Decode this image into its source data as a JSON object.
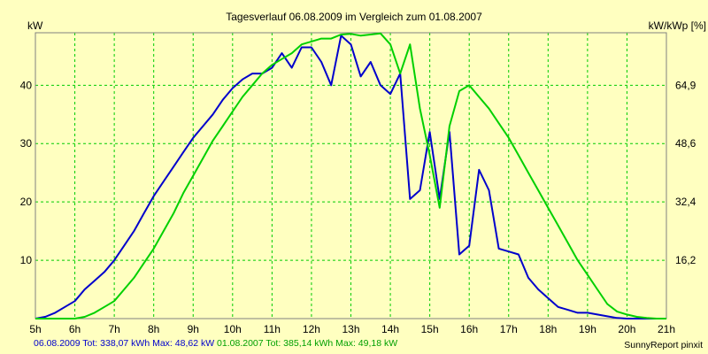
{
  "chart_data": {
    "type": "line",
    "title": "Tagesverlauf 06.08.2009 im Vergleich zum 01.08.2007",
    "ylabel": "kW",
    "y2label": "kW/kWp [%]",
    "xlim": [
      5,
      21
    ],
    "ylim": [
      0,
      49
    ],
    "x_ticks": [
      "5h",
      "6h",
      "7h",
      "8h",
      "9h",
      "10h",
      "11h",
      "12h",
      "13h",
      "14h",
      "15h",
      "16h",
      "17h",
      "18h",
      "19h",
      "20h",
      "21h"
    ],
    "y_ticks": [
      "10",
      "20",
      "30",
      "40"
    ],
    "y2_ticks": [
      "16,2",
      "32,4",
      "48,6",
      "64,9"
    ],
    "grid": true,
    "series": [
      {
        "name": "06.08.2009",
        "color": "#0000cc",
        "x": [
          5.0,
          5.25,
          5.5,
          5.75,
          6.0,
          6.25,
          6.5,
          6.75,
          7.0,
          7.25,
          7.5,
          7.75,
          8.0,
          8.25,
          8.5,
          8.75,
          9.0,
          9.25,
          9.5,
          9.75,
          10.0,
          10.25,
          10.5,
          10.75,
          11.0,
          11.25,
          11.5,
          11.75,
          12.0,
          12.25,
          12.5,
          12.75,
          13.0,
          13.25,
          13.5,
          13.75,
          14.0,
          14.25,
          14.5,
          14.75,
          15.0,
          15.25,
          15.5,
          15.75,
          16.0,
          16.25,
          16.5,
          16.75,
          17.0,
          17.25,
          17.5,
          17.75,
          18.0,
          18.25,
          18.5,
          18.75,
          19.0,
          19.25,
          19.5,
          19.75,
          20.0,
          20.25,
          20.5,
          21.0
        ],
        "y": [
          0,
          0.3,
          1,
          2,
          3,
          5,
          6.5,
          8,
          10,
          12.5,
          15,
          18,
          21,
          23.5,
          26,
          28.5,
          31,
          33,
          35,
          37.5,
          39.5,
          41,
          42,
          42,
          43,
          45.5,
          43,
          46.5,
          46.5,
          44,
          40,
          48.5,
          47,
          41.5,
          44,
          40,
          38.5,
          42,
          20.5,
          22,
          32,
          20.5,
          32,
          11,
          12.5,
          25.5,
          22,
          12,
          11.5,
          11,
          7,
          5,
          3.5,
          2,
          1.5,
          1,
          1,
          0.7,
          0.4,
          0.1,
          0,
          0,
          0,
          0
        ]
      },
      {
        "name": "01.08.2007",
        "color": "#00d000",
        "x": [
          5.0,
          5.5,
          6.0,
          6.25,
          6.5,
          6.75,
          7.0,
          7.25,
          7.5,
          7.75,
          8.0,
          8.25,
          8.5,
          8.75,
          9.0,
          9.25,
          9.5,
          9.75,
          10.0,
          10.25,
          10.5,
          10.75,
          11.0,
          11.25,
          11.5,
          11.75,
          12.0,
          12.25,
          12.5,
          12.75,
          13.0,
          13.25,
          13.5,
          13.75,
          14.0,
          14.25,
          14.5,
          14.75,
          15.0,
          15.25,
          15.5,
          15.75,
          16.0,
          16.25,
          16.5,
          16.75,
          17.0,
          17.25,
          17.5,
          17.75,
          18.0,
          18.25,
          18.5,
          18.75,
          19.0,
          19.25,
          19.5,
          19.75,
          20.0,
          20.25,
          20.5,
          20.75,
          21.0
        ],
        "y": [
          0,
          0,
          0,
          0.3,
          1,
          2,
          3,
          5,
          7,
          9.5,
          12,
          15,
          18,
          21.5,
          24.5,
          27.5,
          30.5,
          33,
          35.5,
          38,
          40,
          42,
          43.5,
          44.5,
          45.5,
          47,
          47.5,
          48,
          48,
          48.7,
          48.8,
          48.5,
          48.7,
          48.9,
          47,
          42,
          47,
          36,
          28,
          19,
          33,
          39,
          40,
          38,
          36,
          33.5,
          31,
          28,
          25,
          22,
          19,
          16,
          13,
          10,
          7.5,
          5,
          2.5,
          1.2,
          0.7,
          0.3,
          0.1,
          0,
          0
        ]
      }
    ]
  },
  "footer": {
    "series1_name": "06.08.2009",
    "series1_total": "Tot: 338,07 kWh",
    "series1_max": "Max: 48,62 kW",
    "series2_name": "01.08.2007",
    "series2_total": "Tot: 385,14 kWh",
    "series2_max": "Max: 49,18 kW"
  },
  "credit": "SunnyReport pinxit",
  "colors": {
    "background": "#ffffc0",
    "grid": "#00cc00",
    "series1": "#0000cc",
    "series2": "#00d000"
  }
}
